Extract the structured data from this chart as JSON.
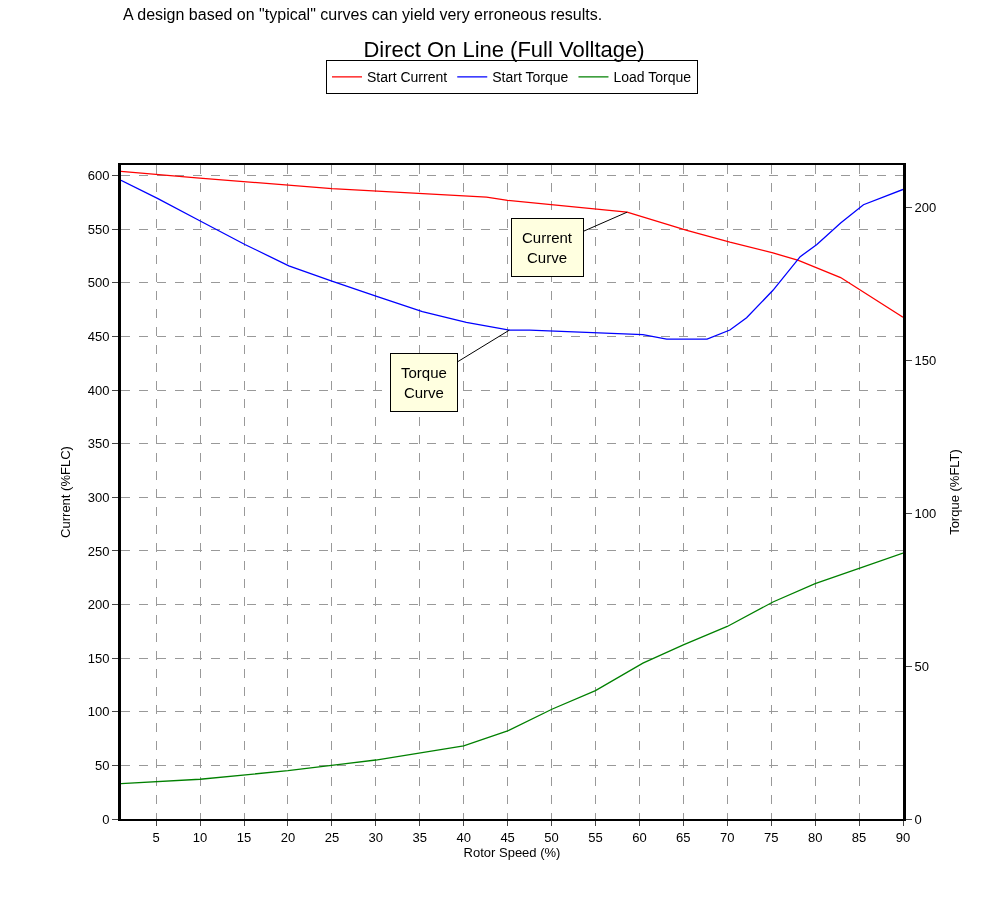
{
  "chart_data": {
    "type": "line",
    "title": "Direct On Line (Full Volltage)",
    "xlabel": "Rotor Speed (%)",
    "ylabel": "Current (%FLC)",
    "y2label": "Torque (%FLT)",
    "annotations": [
      "A design based on \"typical\" curves can yield very erroneous results.",
      {
        "text": "Current Curve",
        "x": 58.6,
        "y": 566
      },
      {
        "text": "Torque Curve",
        "x": 45.2,
        "y": 456
      }
    ],
    "series": [
      {
        "name": "Start Current",
        "color": "#ff0000",
        "x": [
          1,
          9.6,
          25,
          42.6,
          45,
          58.6,
          65.4,
          70.3,
          75.2,
          78.1,
          82.9,
          90
        ],
        "values": [
          604,
          598,
          588,
          580,
          577,
          566,
          549,
          538,
          528,
          521,
          505,
          468
        ]
      },
      {
        "name": "Start Torque",
        "color": "#0000ff",
        "axis": "y2",
        "x": [
          1,
          5.2,
          9.8,
          15.1,
          20.1,
          25,
          30.1,
          35.3,
          40.3,
          45.2,
          47.5,
          60.4,
          63.1,
          67.7,
          70.3,
          72.2,
          75.2,
          78.3,
          80.2,
          82.9,
          85.5,
          90
        ],
        "values": [
          209,
          203,
          196,
          188,
          181,
          176,
          171,
          166,
          162.5,
          160,
          160,
          158.5,
          157,
          157,
          160,
          164,
          173,
          184,
          188,
          195,
          201,
          206
        ]
      },
      {
        "name": "Load Torque",
        "color": "#008000",
        "axis": "y2",
        "x": [
          1,
          10,
          20,
          30,
          40,
          45,
          50.1,
          55,
          60.4,
          65,
          70,
          75.2,
          80,
          85,
          90
        ],
        "values": [
          11.6,
          13,
          15.8,
          19.3,
          23.9,
          28.8,
          36,
          42,
          51,
          57,
          63,
          71,
          77,
          82,
          87
        ]
      }
    ],
    "xlim": [
      1,
      90
    ],
    "xticks": [
      5,
      10,
      15,
      20,
      25,
      30,
      35,
      40,
      45,
      50,
      55,
      60,
      65,
      70,
      75,
      80,
      85,
      90
    ],
    "ylim": [
      0,
      610
    ],
    "yticks": [
      0,
      50,
      100,
      150,
      200,
      250,
      300,
      350,
      400,
      450,
      500,
      550,
      600
    ],
    "y2lim": [
      0,
      214
    ],
    "y2ticks": [
      0,
      50,
      100,
      150,
      200
    ],
    "grid": true,
    "legend": "top",
    "line_style": "solid",
    "marker": "none"
  }
}
